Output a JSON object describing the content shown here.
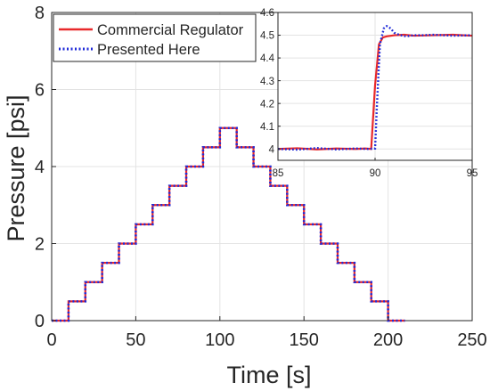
{
  "chart_data": [
    {
      "type": "line",
      "xlabel": "Time [s]",
      "ylabel": "Pressure [psi]",
      "xlim": [
        0,
        250
      ],
      "ylim": [
        0,
        8
      ],
      "xticks": [
        0,
        50,
        100,
        150,
        200,
        250
      ],
      "yticks": [
        0,
        2,
        4,
        6,
        8
      ],
      "grid": true,
      "legend": "top-left",
      "colors": {
        "commercial": "#e8292b",
        "presented": "#1f2ad8"
      },
      "series": [
        {
          "name": "Commercial Regulator",
          "style": "solid",
          "x": [
            0,
            10,
            10,
            20,
            20,
            30,
            30,
            40,
            40,
            50,
            50,
            60,
            60,
            70,
            70,
            80,
            80,
            90,
            90,
            100,
            100,
            110,
            110,
            120,
            120,
            130,
            130,
            140,
            140,
            150,
            150,
            160,
            160,
            170,
            170,
            180,
            180,
            190,
            190,
            200,
            200,
            210
          ],
          "y": [
            0,
            0,
            0.5,
            0.5,
            1.0,
            1.0,
            1.5,
            1.5,
            2.0,
            2.0,
            2.5,
            2.5,
            3.0,
            3.0,
            3.5,
            3.5,
            4.0,
            4.0,
            4.5,
            4.5,
            5.0,
            5.0,
            4.5,
            4.5,
            4.0,
            4.0,
            3.5,
            3.5,
            3.0,
            3.0,
            2.5,
            2.5,
            2.0,
            2.0,
            1.5,
            1.5,
            1.0,
            1.0,
            0.5,
            0.5,
            0,
            0
          ]
        },
        {
          "name": "Presented Here",
          "style": "dotted",
          "x": [
            0,
            10,
            10,
            20,
            20,
            30,
            30,
            40,
            40,
            50,
            50,
            60,
            60,
            70,
            70,
            80,
            80,
            90,
            90,
            100,
            100,
            110,
            110,
            120,
            120,
            130,
            130,
            140,
            140,
            150,
            150,
            160,
            160,
            170,
            170,
            180,
            180,
            190,
            190,
            200,
            200,
            210
          ],
          "y": [
            0,
            0,
            0.5,
            0.5,
            1.0,
            1.0,
            1.5,
            1.5,
            2.0,
            2.0,
            2.5,
            2.5,
            3.0,
            3.0,
            3.5,
            3.5,
            4.0,
            4.0,
            4.5,
            4.5,
            5.0,
            5.0,
            4.5,
            4.5,
            4.0,
            4.0,
            3.5,
            3.5,
            3.0,
            3.0,
            2.5,
            2.5,
            2.0,
            2.0,
            1.5,
            1.5,
            1.0,
            1.0,
            0.5,
            0.5,
            0,
            0
          ]
        }
      ]
    },
    {
      "type": "line",
      "placement": "inset-top-right",
      "xlim": [
        85,
        95
      ],
      "ylim": [
        3.95,
        4.6
      ],
      "xticks": [
        85,
        90,
        95
      ],
      "yticks": [
        4,
        4.1,
        4.2,
        4.3,
        4.4,
        4.5,
        4.6
      ],
      "grid": true,
      "series": [
        {
          "name": "Commercial Regulator",
          "style": "solid",
          "x": [
            85,
            86,
            87,
            88,
            89,
            89.5,
            89.8,
            90.0,
            90.2,
            90.4,
            90.6,
            91,
            91.5,
            92,
            93,
            94,
            95
          ],
          "y": [
            4.0,
            4.003,
            3.998,
            4.002,
            4.0,
            4.002,
            4.0,
            4.28,
            4.46,
            4.49,
            4.495,
            4.5,
            4.502,
            4.498,
            4.5,
            4.502,
            4.498
          ]
        },
        {
          "name": "Presented Here",
          "style": "dotted",
          "x": [
            85,
            86,
            87,
            88,
            89,
            89.6,
            90.0,
            90.1,
            90.25,
            90.45,
            90.6,
            90.8,
            91.0,
            91.3,
            91.6,
            92,
            92.5,
            93,
            94,
            95
          ],
          "y": [
            4.0,
            3.997,
            4.004,
            3.998,
            4.002,
            4.0,
            4.002,
            4.2,
            4.46,
            4.53,
            4.54,
            4.53,
            4.51,
            4.5,
            4.495,
            4.5,
            4.5,
            4.502,
            4.498,
            4.5
          ]
        }
      ]
    }
  ]
}
